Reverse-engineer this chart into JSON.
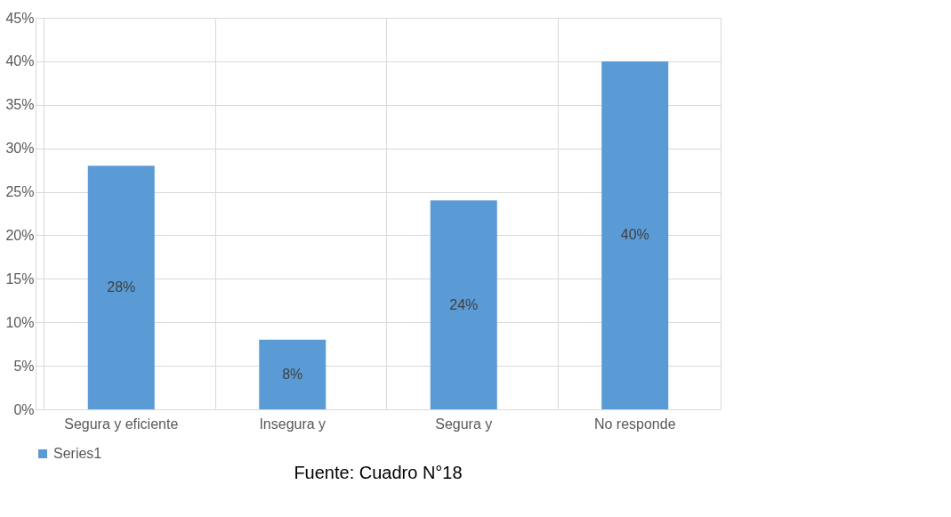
{
  "chart_data": {
    "type": "bar",
    "categories": [
      "Segura y eficiente",
      "Insegura y",
      "Segura y",
      "No responde"
    ],
    "series": [
      {
        "name": "Series1",
        "color": "#5b9bd5",
        "values": [
          28,
          8,
          24,
          40
        ]
      }
    ],
    "value_labels": [
      "28%",
      "8%",
      "24%",
      "40%"
    ],
    "ylim": [
      0,
      45
    ],
    "yticks": [
      {
        "value": 0,
        "label": "0%"
      },
      {
        "value": 5,
        "label": "5%"
      },
      {
        "value": 10,
        "label": "10%"
      },
      {
        "value": 15,
        "label": "15%"
      },
      {
        "value": 20,
        "label": "20%"
      },
      {
        "value": 25,
        "label": "25%"
      },
      {
        "value": 30,
        "label": "30%"
      },
      {
        "value": 35,
        "label": "35%"
      },
      {
        "value": 40,
        "label": "40%"
      },
      {
        "value": 45,
        "label": "45%"
      }
    ],
    "grid": true,
    "legend": "bottom",
    "annotations": [
      "Fuente: Cuadro N°18"
    ]
  }
}
